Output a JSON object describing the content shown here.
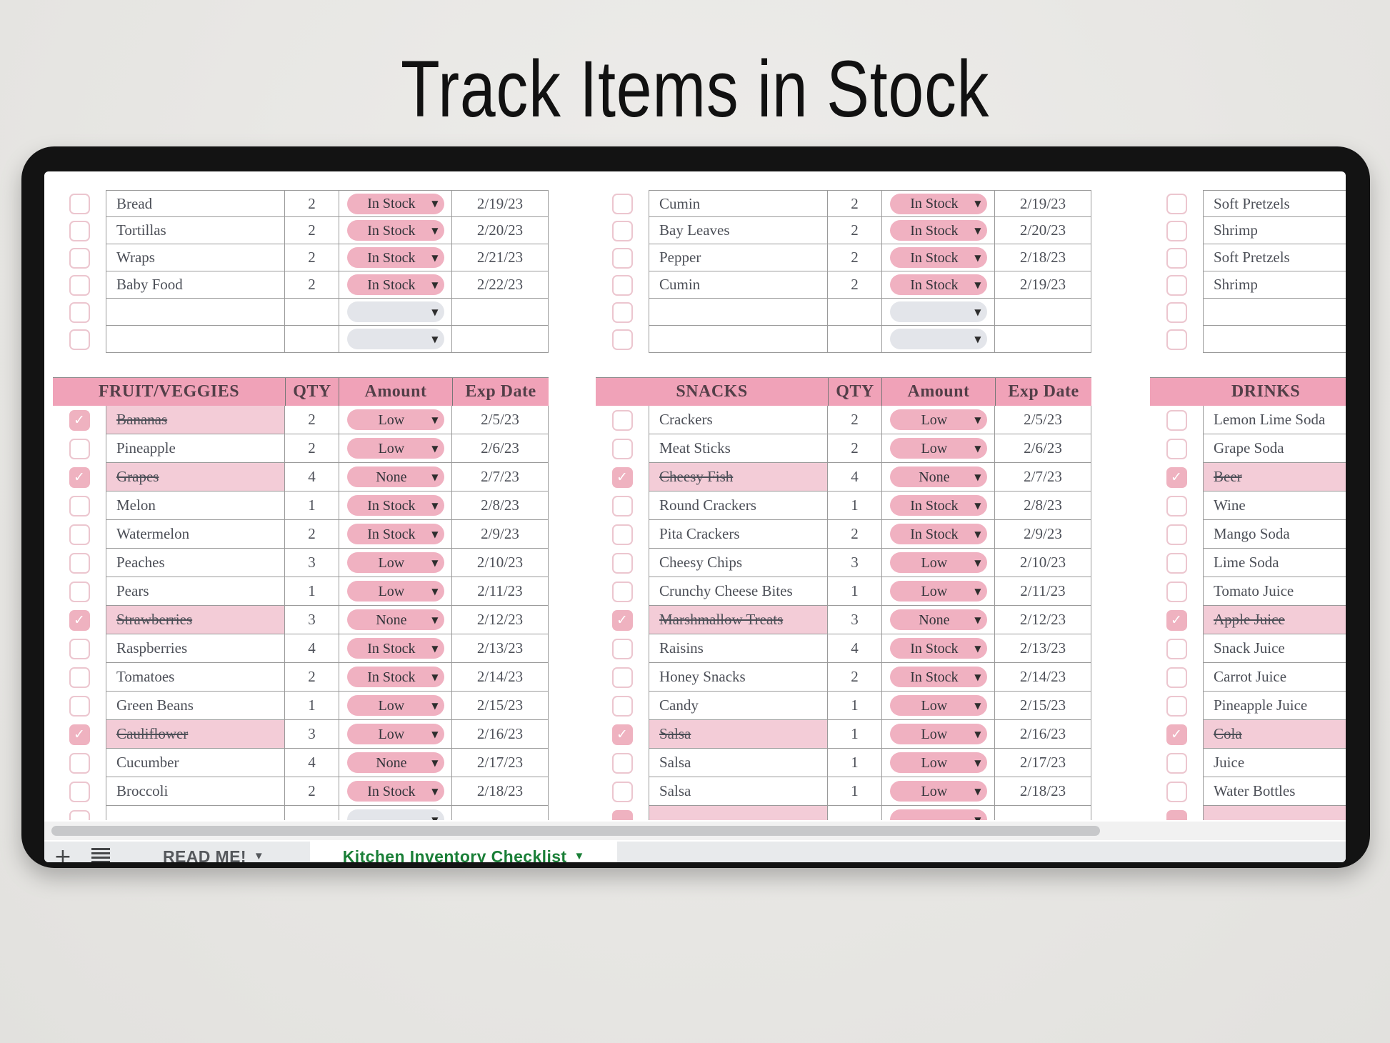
{
  "title": "Track Items in Stock",
  "columns": {
    "qty": "QTY",
    "amount": "Amount",
    "exp": "Exp Date"
  },
  "icons": {
    "check": "✓",
    "dropdown": "▼",
    "tab_caret": "▼",
    "plus": "+"
  },
  "colors": {
    "header_pink": "#f0a2b8",
    "pill_pink": "#f0b1c1",
    "row_highlight": "#f3ccd7",
    "checkbox_fill": "#efb2c0",
    "active_tab_green": "#1a7f37",
    "frame_black": "#131313"
  },
  "top_sections": [
    {
      "rows": [
        {
          "name": "Bread",
          "qty": "2",
          "amount": "In Stock",
          "exp": "2/19/23",
          "checked": false,
          "empty": false
        },
        {
          "name": "Tortillas",
          "qty": "2",
          "amount": "In Stock",
          "exp": "2/20/23",
          "checked": false,
          "empty": false
        },
        {
          "name": "Wraps",
          "qty": "2",
          "amount": "In Stock",
          "exp": "2/21/23",
          "checked": false,
          "empty": false
        },
        {
          "name": "Baby Food",
          "qty": "2",
          "amount": "In Stock",
          "exp": "2/22/23",
          "checked": false,
          "empty": false
        },
        {
          "name": "",
          "qty": "",
          "amount": "",
          "exp": "",
          "checked": false,
          "empty": true
        },
        {
          "name": "",
          "qty": "",
          "amount": "",
          "exp": "",
          "checked": false,
          "empty": true
        }
      ]
    },
    {
      "rows": [
        {
          "name": "Cumin",
          "qty": "2",
          "amount": "In Stock",
          "exp": "2/19/23",
          "checked": false,
          "empty": false
        },
        {
          "name": "Bay Leaves",
          "qty": "2",
          "amount": "In Stock",
          "exp": "2/20/23",
          "checked": false,
          "empty": false
        },
        {
          "name": "Pepper",
          "qty": "2",
          "amount": "In Stock",
          "exp": "2/18/23",
          "checked": false,
          "empty": false
        },
        {
          "name": "Cumin",
          "qty": "2",
          "amount": "In Stock",
          "exp": "2/19/23",
          "checked": false,
          "empty": false
        },
        {
          "name": "",
          "qty": "",
          "amount": "",
          "exp": "",
          "checked": false,
          "empty": true
        },
        {
          "name": "",
          "qty": "",
          "amount": "",
          "exp": "",
          "checked": false,
          "empty": true
        }
      ]
    },
    {
      "rows": [
        {
          "name": "Soft Pretzels",
          "checked": false
        },
        {
          "name": "Shrimp",
          "checked": false
        },
        {
          "name": "Soft Pretzels",
          "checked": false
        },
        {
          "name": "Shrimp",
          "checked": false
        },
        {
          "name": "",
          "checked": false
        },
        {
          "name": "",
          "checked": false
        }
      ]
    }
  ],
  "sections": [
    {
      "header": "FRUIT/VEGGIES",
      "rows": [
        {
          "name": "Bananas",
          "qty": "2",
          "amount": "Low",
          "exp": "2/5/23",
          "checked": true,
          "empty": false
        },
        {
          "name": "Pineapple",
          "qty": "2",
          "amount": "Low",
          "exp": "2/6/23",
          "checked": false,
          "empty": false
        },
        {
          "name": "Grapes",
          "qty": "4",
          "amount": "None",
          "exp": "2/7/23",
          "checked": true,
          "empty": false
        },
        {
          "name": "Melon",
          "qty": "1",
          "amount": "In Stock",
          "exp": "2/8/23",
          "checked": false,
          "empty": false
        },
        {
          "name": "Watermelon",
          "qty": "2",
          "amount": "In Stock",
          "exp": "2/9/23",
          "checked": false,
          "empty": false
        },
        {
          "name": "Peaches",
          "qty": "3",
          "amount": "Low",
          "exp": "2/10/23",
          "checked": false,
          "empty": false
        },
        {
          "name": "Pears",
          "qty": "1",
          "amount": "Low",
          "exp": "2/11/23",
          "checked": false,
          "empty": false
        },
        {
          "name": "Strawberries",
          "qty": "3",
          "amount": "None",
          "exp": "2/12/23",
          "checked": true,
          "empty": false
        },
        {
          "name": "Raspberries",
          "qty": "4",
          "amount": "In Stock",
          "exp": "2/13/23",
          "checked": false,
          "empty": false
        },
        {
          "name": "Tomatoes",
          "qty": "2",
          "amount": "In Stock",
          "exp": "2/14/23",
          "checked": false,
          "empty": false
        },
        {
          "name": "Green Beans",
          "qty": "1",
          "amount": "Low",
          "exp": "2/15/23",
          "checked": false,
          "empty": false
        },
        {
          "name": "Cauliflower",
          "qty": "3",
          "amount": "Low",
          "exp": "2/16/23",
          "checked": true,
          "empty": false
        },
        {
          "name": "Cucumber",
          "qty": "4",
          "amount": "None",
          "exp": "2/17/23",
          "checked": false,
          "empty": false
        },
        {
          "name": "Broccoli",
          "qty": "2",
          "amount": "In Stock",
          "exp": "2/18/23",
          "checked": false,
          "empty": false
        }
      ]
    },
    {
      "header": "SNACKS",
      "rows": [
        {
          "name": "Crackers",
          "qty": "2",
          "amount": "Low",
          "exp": "2/5/23",
          "checked": false,
          "empty": false
        },
        {
          "name": "Meat Sticks",
          "qty": "2",
          "amount": "Low",
          "exp": "2/6/23",
          "checked": false,
          "empty": false
        },
        {
          "name": "Cheesy Fish",
          "qty": "4",
          "amount": "None",
          "exp": "2/7/23",
          "checked": true,
          "empty": false
        },
        {
          "name": "Round Crackers",
          "qty": "1",
          "amount": "In Stock",
          "exp": "2/8/23",
          "checked": false,
          "empty": false
        },
        {
          "name": "Pita Crackers",
          "qty": "2",
          "amount": "In Stock",
          "exp": "2/9/23",
          "checked": false,
          "empty": false
        },
        {
          "name": "Cheesy Chips",
          "qty": "3",
          "amount": "Low",
          "exp": "2/10/23",
          "checked": false,
          "empty": false
        },
        {
          "name": "Crunchy Cheese Bites",
          "qty": "1",
          "amount": "Low",
          "exp": "2/11/23",
          "checked": false,
          "empty": false
        },
        {
          "name": "Marshmallow Treats",
          "qty": "3",
          "amount": "None",
          "exp": "2/12/23",
          "checked": true,
          "empty": false
        },
        {
          "name": "Raisins",
          "qty": "4",
          "amount": "In Stock",
          "exp": "2/13/23",
          "checked": false,
          "empty": false
        },
        {
          "name": "Honey Snacks",
          "qty": "2",
          "amount": "In Stock",
          "exp": "2/14/23",
          "checked": false,
          "empty": false
        },
        {
          "name": "Candy",
          "qty": "1",
          "amount": "Low",
          "exp": "2/15/23",
          "checked": false,
          "empty": false
        },
        {
          "name": "Salsa",
          "qty": "1",
          "amount": "Low",
          "exp": "2/16/23",
          "checked": true,
          "empty": false
        },
        {
          "name": "Salsa",
          "qty": "1",
          "amount": "Low",
          "exp": "2/17/23",
          "checked": false,
          "empty": false
        },
        {
          "name": "Salsa",
          "qty": "1",
          "amount": "Low",
          "exp": "2/18/23",
          "checked": false,
          "empty": false
        }
      ]
    },
    {
      "header": "DRINKS",
      "rows": [
        {
          "name": "Lemon Lime Soda",
          "checked": false
        },
        {
          "name": "Grape Soda",
          "checked": false
        },
        {
          "name": "Beer",
          "checked": true
        },
        {
          "name": "Wine",
          "checked": false
        },
        {
          "name": "Mango Soda",
          "checked": false
        },
        {
          "name": "Lime Soda",
          "checked": false
        },
        {
          "name": "Tomato Juice",
          "checked": false
        },
        {
          "name": "Apple Juice",
          "checked": true
        },
        {
          "name": "Snack Juice",
          "checked": false
        },
        {
          "name": "Carrot Juice",
          "checked": false
        },
        {
          "name": "Pineapple Juice",
          "checked": false
        },
        {
          "name": "Cola",
          "checked": true
        },
        {
          "name": "Juice",
          "checked": false
        },
        {
          "name": "Water Bottles",
          "checked": false
        }
      ]
    }
  ],
  "partial_rows": [
    {
      "style": "empty"
    },
    {
      "style": "checked"
    },
    {
      "style": "checked"
    }
  ],
  "sheet_tabs": {
    "read_me": "READ ME!",
    "active": "Kitchen Inventory Checklist"
  }
}
